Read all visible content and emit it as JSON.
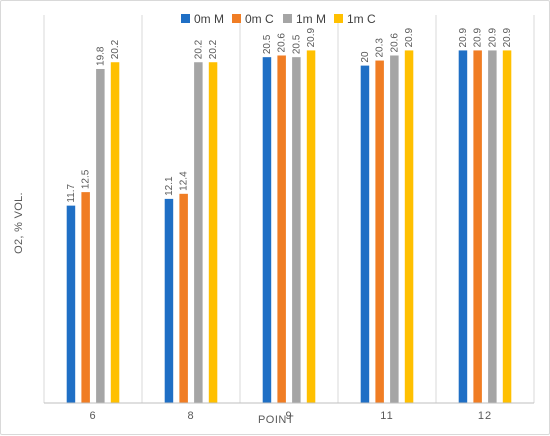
{
  "chart_data": {
    "type": "bar",
    "ylabel": "O2, % VOL.",
    "xlabel": "POINT",
    "categories": [
      "6",
      "8",
      "9",
      "11",
      "12"
    ],
    "series": [
      {
        "name": "0m M",
        "values": [
          11.7,
          12.1,
          20.5,
          20,
          20.9
        ],
        "labels": [
          "11.7",
          "12.1",
          "20.5",
          "20",
          "20.9"
        ],
        "color": "#1f6fc5"
      },
      {
        "name": "0m C",
        "values": [
          12.5,
          12.4,
          20.6,
          20.3,
          20.9
        ],
        "labels": [
          "12.5",
          "12.4",
          "20.6",
          "20.3",
          "20.9"
        ],
        "color": "#f07d24"
      },
      {
        "name": "1m M",
        "values": [
          19.8,
          20.2,
          20.5,
          20.6,
          20.9
        ],
        "labels": [
          "19.8",
          "20.2",
          "20.5",
          "20.6",
          "20.9"
        ],
        "color": "#a5a5a5"
      },
      {
        "name": "1m C",
        "values": [
          20.2,
          20.2,
          20.9,
          20.9,
          20.9
        ],
        "labels": [
          "20.2",
          "20.2",
          "20.9",
          "20.9",
          "20.9"
        ],
        "color": "#ffc000"
      }
    ],
    "ylim": [
      0,
      23
    ],
    "grid": "vertical category separators",
    "legend": "top"
  }
}
